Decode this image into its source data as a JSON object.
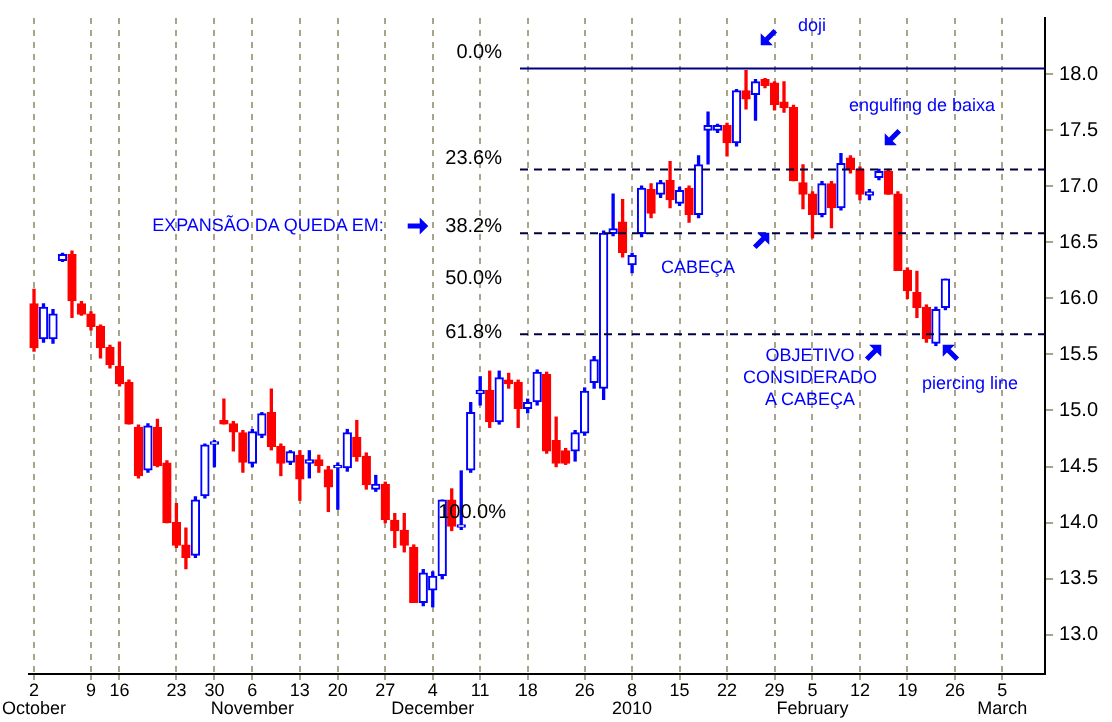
{
  "chart_data": {
    "type": "candlestick",
    "categories": [
      "2\nOctober",
      null,
      null,
      null,
      null,
      null,
      "9",
      null,
      null,
      "16",
      null,
      null,
      null,
      null,
      null,
      "23",
      null,
      null,
      null,
      "30",
      null,
      null,
      null,
      "6\nNovember",
      null,
      null,
      null,
      null,
      "13",
      null,
      null,
      null,
      "20",
      null,
      null,
      null,
      null,
      "27",
      null,
      null,
      null,
      null,
      "4\nDecember",
      null,
      null,
      null,
      null,
      "11",
      null,
      null,
      null,
      null,
      "18",
      null,
      null,
      null,
      null,
      null,
      "26",
      null,
      null,
      null,
      null,
      "8\n2010",
      null,
      null,
      null,
      null,
      "15",
      null,
      null,
      null,
      null,
      "22",
      null,
      null,
      null,
      null,
      "29",
      null,
      null,
      null,
      "5\nFebruary",
      null,
      null,
      null,
      null,
      "12",
      null,
      null,
      null,
      null,
      "19",
      null,
      null,
      null,
      null,
      "26",
      null,
      null,
      null,
      null,
      "5\nMarch",
      null,
      null,
      null,
      null
    ],
    "ohlc": [
      [
        15.95,
        16.08,
        15.53,
        15.56
      ],
      [
        15.64,
        15.95,
        15.61,
        15.92
      ],
      [
        15.64,
        15.9,
        15.6,
        15.86
      ],
      [
        16.34,
        16.4,
        16.33,
        16.39
      ],
      [
        16.39,
        16.42,
        15.83,
        15.98
      ],
      [
        15.95,
        15.97,
        15.85,
        15.86
      ],
      [
        15.86,
        15.88,
        15.72,
        15.75
      ],
      [
        15.75,
        15.76,
        15.47,
        15.56
      ],
      [
        15.56,
        15.58,
        15.38,
        15.41
      ],
      [
        15.39,
        15.61,
        15.22,
        15.24
      ],
      [
        15.25,
        15.27,
        14.88,
        14.88
      ],
      [
        14.85,
        14.87,
        14.4,
        14.42
      ],
      [
        14.47,
        14.88,
        14.45,
        14.86
      ],
      [
        14.85,
        14.92,
        14.5,
        14.51
      ],
      [
        14.53,
        14.55,
        14.0,
        14.0
      ],
      [
        14.0,
        14.17,
        13.78,
        13.8
      ],
      [
        13.8,
        13.95,
        13.59,
        13.69
      ],
      [
        13.71,
        14.23,
        13.69,
        14.2
      ],
      [
        14.24,
        14.7,
        14.22,
        14.69
      ],
      [
        14.7,
        14.73,
        14.5,
        14.72
      ],
      [
        14.91,
        15.1,
        14.88,
        14.88
      ],
      [
        14.88,
        14.9,
        14.64,
        14.81
      ],
      [
        14.8,
        14.82,
        14.45,
        14.54
      ],
      [
        14.53,
        14.83,
        14.5,
        14.81
      ],
      [
        14.78,
        14.98,
        14.76,
        14.97
      ],
      [
        14.98,
        15.19,
        14.65,
        14.68
      ],
      [
        14.68,
        14.7,
        14.42,
        14.53
      ],
      [
        14.54,
        14.64,
        14.52,
        14.63
      ],
      [
        14.6,
        14.64,
        14.2,
        14.39
      ],
      [
        14.53,
        14.64,
        14.4,
        14.56
      ],
      [
        14.56,
        14.6,
        14.45,
        14.51
      ],
      [
        14.47,
        14.5,
        14.1,
        14.32
      ],
      [
        14.49,
        14.53,
        14.12,
        14.51
      ],
      [
        14.49,
        14.83,
        14.46,
        14.8
      ],
      [
        14.76,
        14.91,
        14.55,
        14.59
      ],
      [
        14.59,
        14.62,
        14.3,
        14.34
      ],
      [
        14.3,
        14.42,
        14.28,
        14.34
      ],
      [
        14.34,
        14.36,
        14.0,
        14.03
      ],
      [
        14.02,
        14.08,
        13.78,
        13.93
      ],
      [
        13.93,
        14.08,
        13.74,
        13.8
      ],
      [
        13.78,
        13.8,
        13.29,
        13.29
      ],
      [
        13.29,
        13.58,
        13.26,
        13.55
      ],
      [
        13.4,
        13.56,
        13.25,
        13.52
      ],
      [
        13.53,
        14.2,
        13.5,
        14.2
      ],
      [
        14.2,
        14.3,
        13.93,
        13.97
      ],
      [
        13.96,
        14.46,
        13.94,
        13.98
      ],
      [
        14.47,
        15.07,
        14.45,
        14.98
      ],
      [
        15.15,
        15.3,
        15.05,
        15.18
      ],
      [
        15.18,
        15.35,
        14.85,
        14.9
      ],
      [
        14.9,
        15.35,
        14.88,
        15.29
      ],
      [
        15.27,
        15.33,
        15.2,
        15.24
      ],
      [
        15.25,
        15.27,
        14.85,
        15.02
      ],
      [
        15.02,
        15.1,
        14.98,
        15.07
      ],
      [
        15.08,
        15.36,
        15.05,
        15.34
      ],
      [
        15.32,
        15.34,
        14.62,
        14.64
      ],
      [
        14.73,
        14.94,
        14.5,
        14.53
      ],
      [
        14.64,
        14.66,
        14.52,
        14.53
      ],
      [
        14.64,
        14.82,
        14.55,
        14.8
      ],
      [
        14.8,
        15.2,
        14.78,
        15.17
      ],
      [
        15.25,
        15.48,
        15.2,
        15.45
      ],
      [
        15.2,
        16.6,
        15.1,
        16.58
      ],
      [
        16.58,
        16.93,
        16.56,
        16.62
      ],
      [
        16.68,
        16.88,
        16.37,
        16.41
      ],
      [
        16.3,
        16.4,
        16.23,
        16.38
      ],
      [
        16.58,
        17.0,
        16.55,
        16.98
      ],
      [
        16.97,
        17.02,
        16.72,
        16.76
      ],
      [
        16.93,
        17.05,
        16.9,
        17.03
      ],
      [
        17.05,
        17.22,
        16.81,
        16.88
      ],
      [
        16.85,
        16.99,
        16.83,
        16.96
      ],
      [
        16.98,
        17.0,
        16.68,
        16.75
      ],
      [
        16.75,
        17.27,
        16.72,
        17.19
      ],
      [
        17.5,
        17.66,
        17.2,
        17.54
      ],
      [
        17.5,
        17.55,
        17.48,
        17.54
      ],
      [
        17.54,
        17.56,
        17.27,
        17.39
      ],
      [
        17.39,
        17.86,
        17.36,
        17.85
      ],
      [
        17.85,
        18.03,
        17.69,
        17.78
      ],
      [
        17.82,
        17.95,
        17.59,
        17.93
      ],
      [
        17.95,
        17.96,
        17.88,
        17.9
      ],
      [
        17.92,
        17.93,
        17.68,
        17.73
      ],
      [
        17.75,
        17.93,
        17.66,
        17.7
      ],
      [
        17.7,
        17.72,
        17.05,
        17.05
      ],
      [
        17.03,
        17.19,
        16.8,
        16.93
      ],
      [
        16.93,
        16.95,
        16.54,
        16.75
      ],
      [
        16.75,
        17.04,
        16.73,
        17.02
      ],
      [
        17.02,
        17.04,
        16.63,
        16.81
      ],
      [
        16.81,
        17.29,
        16.79,
        17.2
      ],
      [
        17.25,
        17.27,
        17.12,
        17.15
      ],
      [
        17.15,
        17.17,
        16.88,
        16.93
      ],
      [
        16.92,
        16.97,
        16.88,
        16.95
      ],
      [
        17.08,
        17.15,
        17.06,
        17.13
      ],
      [
        17.13,
        17.15,
        16.93,
        16.93
      ],
      [
        16.93,
        16.95,
        16.25,
        16.25
      ],
      [
        16.25,
        16.27,
        16.0,
        16.07
      ],
      [
        16.05,
        16.24,
        15.83,
        15.92
      ],
      [
        15.92,
        15.94,
        15.61,
        15.64
      ],
      [
        15.6,
        15.92,
        15.58,
        15.9
      ],
      [
        15.92,
        16.17,
        15.9,
        16.17
      ],
      null,
      null,
      null,
      null,
      null,
      null,
      null,
      null,
      null,
      null
    ],
    "ylim": [
      12.65,
      18.5
    ],
    "yticks": [
      {
        "value": 13,
        "label": "13.0"
      },
      {
        "value": 13.5,
        "label": "13.5"
      },
      {
        "value": 14,
        "label": "14.0"
      },
      {
        "value": 14.5,
        "label": "14.5"
      },
      {
        "value": 15,
        "label": "15.0"
      },
      {
        "value": 15.5,
        "label": "15.5"
      },
      {
        "value": 16,
        "label": "16.0"
      },
      {
        "value": 16.5,
        "label": "16.5"
      },
      {
        "value": 17,
        "label": "17.0"
      },
      {
        "value": 17.5,
        "label": "17.5"
      },
      {
        "value": 18,
        "label": "18.0"
      }
    ],
    "grid": "x",
    "ref_lines": [
      {
        "axis": "y",
        "value": 18.05,
        "color": "#000080",
        "line_style": "solid"
      },
      {
        "axis": "y",
        "value": 17.15,
        "color": "#000040",
        "line_style": "dashed"
      },
      {
        "axis": "y",
        "value": 16.58,
        "color": "#000040",
        "line_style": "dashed"
      },
      {
        "axis": "y",
        "value": 15.68,
        "color": "#000040",
        "line_style": "dashed"
      }
    ],
    "annotations": [
      "0.0%",
      "23.6%",
      "38.2%",
      "50.0%",
      "61.8%",
      "100.0%",
      "EXPANSÃO DA QUEDA EM:",
      "doji",
      "engulfing de baixa",
      "CABEÇA",
      "OBJETIVO\nCONSIDERADO\nA CABEÇA",
      "piercing line"
    ]
  }
}
